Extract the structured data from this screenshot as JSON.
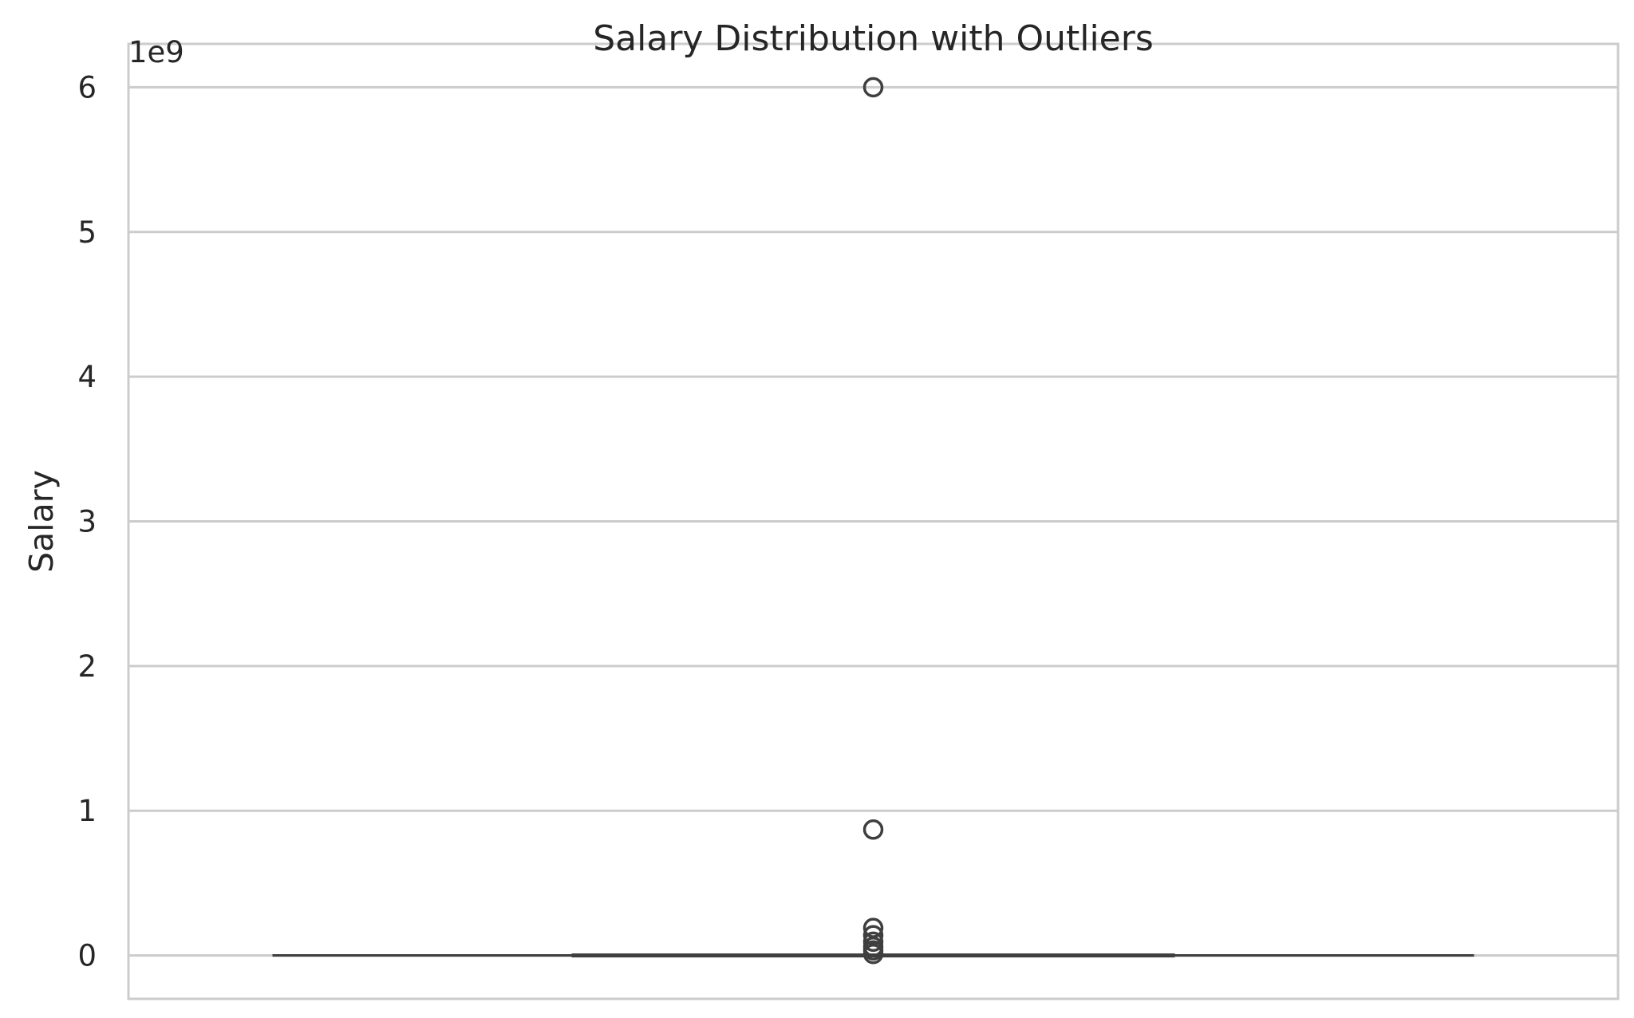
{
  "chart_data": {
    "type": "box",
    "title": "Salary Distribution with Outliers",
    "xlabel": "",
    "ylabel": "Salary",
    "offset_text": "1e9",
    "scale": 1000000000,
    "ylim": [
      -300000000,
      6300000000
    ],
    "yticks": [
      0,
      1000000000,
      2000000000,
      3000000000,
      4000000000,
      5000000000,
      6000000000
    ],
    "ytick_labels": [
      "0",
      "1",
      "2",
      "3",
      "4",
      "5",
      "6"
    ],
    "grid": true,
    "box": {
      "whisker_low": 0,
      "q1": 40000,
      "median": 65000,
      "q3": 95000,
      "whisker_high": 180000,
      "outliers": [
        6000000000,
        870000000,
        190000000,
        140000000,
        95000000,
        60000000,
        35000000,
        10000000
      ]
    },
    "colors": {
      "grid": "#cccccc",
      "spine": "#cccccc",
      "box_line": "#3f3f3f"
    }
  }
}
